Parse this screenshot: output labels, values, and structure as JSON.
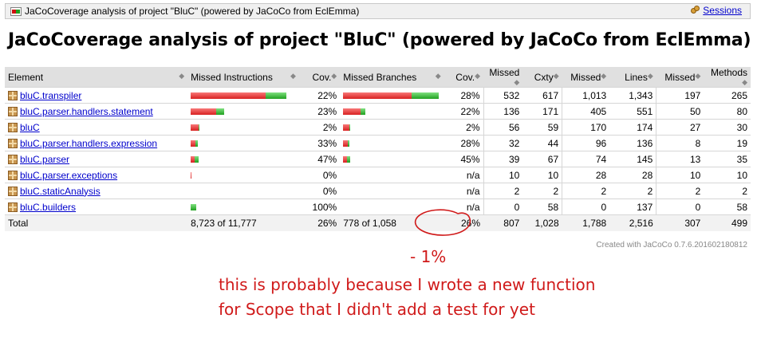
{
  "breadcrumb": {
    "title": "JaCoCoverage analysis of project \"BluC\" (powered by JaCoCo from EclEmma)",
    "sessions_label": "Sessions"
  },
  "page_title": "JaCoCoverage analysis of project \"BluC\" (powered by JaCoCo from EclEmma)",
  "table": {
    "headers": [
      "Element",
      "Missed Instructions",
      "Cov.",
      "Missed Branches",
      "Cov.",
      "Missed",
      "Cxty",
      "Missed",
      "Lines",
      "Missed",
      "Methods"
    ],
    "rows": [
      {
        "name": "bluC.transpiler",
        "instr_red": 0.78,
        "instr_green": 0.22,
        "instr_cov": "22%",
        "br_red": 0.72,
        "br_green": 0.28,
        "br_cov": "28%",
        "cx_missed": "532",
        "cxty": "617",
        "lines_missed": "1,013",
        "lines": "1,343",
        "m_missed": "197",
        "methods": "265"
      },
      {
        "name": "bluC.parser.handlers.statement",
        "instr_red": 0.267,
        "instr_green": 0.08,
        "instr_cov": "23%",
        "br_red": 0.183,
        "br_green": 0.05,
        "br_cov": "22%",
        "cx_missed": "136",
        "cxty": "171",
        "lines_missed": "405",
        "lines": "551",
        "m_missed": "50",
        "methods": "80"
      },
      {
        "name": "bluC",
        "instr_red": 0.083,
        "instr_green": 0.002,
        "instr_cov": "2%",
        "br_red": 0.067,
        "br_green": 0.002,
        "br_cov": "2%",
        "cx_missed": "56",
        "cxty": "59",
        "lines_missed": "170",
        "lines": "174",
        "m_missed": "27",
        "methods": "30"
      },
      {
        "name": "bluC.parser.handlers.expression",
        "instr_red": 0.05,
        "instr_green": 0.025,
        "instr_cov": "33%",
        "br_red": 0.05,
        "br_green": 0.017,
        "br_cov": "28%",
        "cx_missed": "32",
        "cxty": "44",
        "lines_missed": "96",
        "lines": "136",
        "m_missed": "8",
        "methods": "19"
      },
      {
        "name": "bluC.parser",
        "instr_red": 0.042,
        "instr_green": 0.038,
        "instr_cov": "47%",
        "br_red": 0.042,
        "br_green": 0.03,
        "br_cov": "45%",
        "cx_missed": "39",
        "cxty": "67",
        "lines_missed": "74",
        "lines": "145",
        "m_missed": "13",
        "methods": "35"
      },
      {
        "name": "bluC.parser.exceptions",
        "instr_red": 0.008,
        "instr_green": 0,
        "instr_cov": "0%",
        "br_red": 0,
        "br_green": 0,
        "br_cov": "n/a",
        "cx_missed": "10",
        "cxty": "10",
        "lines_missed": "28",
        "lines": "28",
        "m_missed": "10",
        "methods": "10"
      },
      {
        "name": "bluC.staticAnalysis",
        "instr_red": 0,
        "instr_green": 0,
        "instr_cov": "0%",
        "br_red": 0,
        "br_green": 0,
        "br_cov": "n/a",
        "cx_missed": "2",
        "cxty": "2",
        "lines_missed": "2",
        "lines": "2",
        "m_missed": "2",
        "methods": "2"
      },
      {
        "name": "bluC.builders",
        "instr_red": 0,
        "instr_green": 0.058,
        "instr_cov": "100%",
        "br_red": 0,
        "br_green": 0,
        "br_cov": "n/a",
        "cx_missed": "0",
        "cxty": "58",
        "lines_missed": "0",
        "lines": "137",
        "m_missed": "0",
        "methods": "58"
      }
    ],
    "total": {
      "label": "Total",
      "instr": "8,723 of 11,777",
      "instr_cov": "26%",
      "br": "778 of 1,058",
      "br_cov": "26%",
      "cx_missed": "807",
      "cxty": "1,028",
      "lines_missed": "1,788",
      "lines": "2,516",
      "m_missed": "307",
      "methods": "499"
    }
  },
  "footer_created": "Created with JaCoCo 0.7.6.201602180812",
  "annotation": {
    "delta": "- 1%",
    "line1": "this is probably because I wrote a new function",
    "line2": "for Scope that I didn't add a test for yet",
    "color": "#d01a1a"
  },
  "colors": {
    "missed": "#d82020",
    "covered": "#20a020",
    "header_bg": "#e0e0e0"
  }
}
